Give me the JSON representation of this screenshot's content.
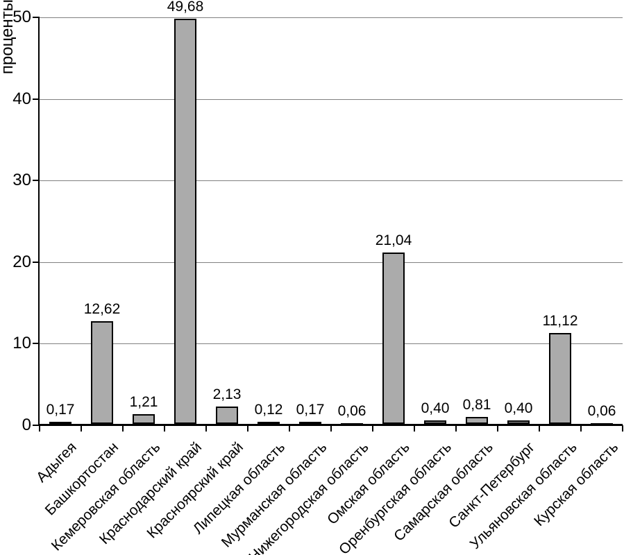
{
  "chart_data": {
    "type": "bar",
    "title": "",
    "xlabel": "",
    "ylabel": "проценты",
    "ylim": [
      0,
      50
    ],
    "yticks": [
      0,
      10,
      20,
      30,
      40,
      50
    ],
    "grid": true,
    "legend_position": "none",
    "bar_color": "#ABABAB",
    "bar_border_color": "#000000",
    "gridline_color": "#808080",
    "categories": [
      "Адыгея",
      "Башкортостан",
      "Кемеровская область",
      "Краснодарский край",
      "Красноярский край",
      "Липецкая область",
      "Мурманская область",
      "Нижегородская область",
      "Омская область",
      "Оренбургская область",
      "Самарская область",
      "Санкт-Петербург",
      "Ульяновская область",
      "Курская область"
    ],
    "values": [
      0.17,
      12.62,
      1.21,
      49.68,
      2.13,
      0.12,
      0.17,
      0.06,
      21.04,
      0.4,
      0.81,
      0.4,
      11.12,
      0.06
    ],
    "value_labels": [
      "0,17",
      "12,62",
      "1,21",
      "49,68",
      "2,13",
      "0,12",
      "0,17",
      "0,06",
      "21,04",
      "0,40",
      "0,81",
      "0,40",
      "11,12",
      "0,06"
    ]
  }
}
